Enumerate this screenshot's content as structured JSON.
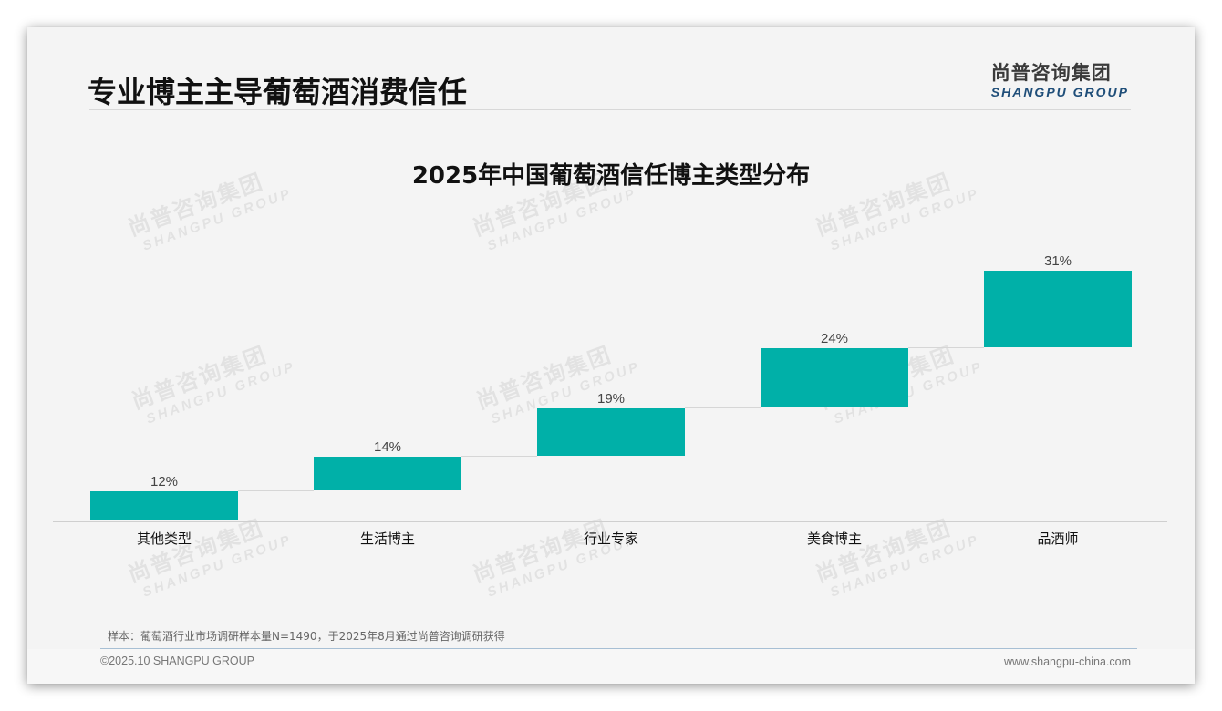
{
  "header": {
    "title": "专业博主主导葡萄酒消费信任",
    "logo_cn": "尚普咨询集团",
    "logo_en": "SHANGPU GROUP"
  },
  "watermark": {
    "cn": "尚普咨询集团",
    "en": "SHANGPU GROUP"
  },
  "chart_data": {
    "type": "bar",
    "subtype": "waterfall",
    "title": "2025年中国葡萄酒信任博主类型分布",
    "categories": [
      "其他类型",
      "生活博主",
      "行业专家",
      "美食博主",
      "品酒师"
    ],
    "values": [
      12,
      14,
      19,
      24,
      31
    ],
    "value_labels": [
      "12%",
      "14%",
      "19%",
      "24%",
      "31%"
    ],
    "cumulative": [
      12,
      26,
      45,
      69,
      100
    ],
    "unit": "%",
    "xlabel": "",
    "ylabel": "",
    "ylim": [
      0,
      100
    ],
    "grid": false,
    "legend": "none",
    "bar_color": "#00b0a8"
  },
  "footer": {
    "note": "样本：葡萄酒行业市场调研样本量N=1490，于2025年8月通过尚普咨询调研获得",
    "copyright": "©2025.10 SHANGPU GROUP",
    "website": "www.shangpu-china.com"
  }
}
